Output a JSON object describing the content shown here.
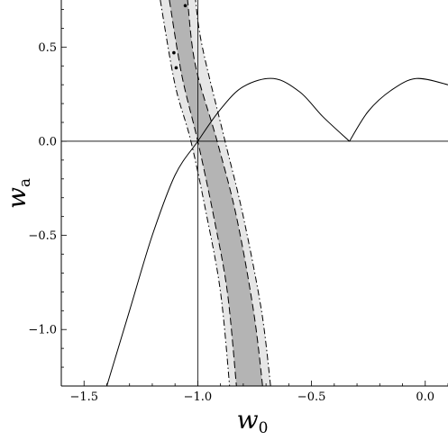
{
  "chart_data": {
    "type": "contour",
    "xlabel": "w",
    "xlabel_subscript": "0",
    "ylabel": "w",
    "ylabel_subscript": "a",
    "xlim": [
      -1.6,
      0.1
    ],
    "ylim": [
      -1.3,
      0.75
    ],
    "x_ticks": [
      -1.5,
      -1.0,
      -0.5,
      0.0
    ],
    "x_tick_labels": [
      "−1.5",
      "−1.0",
      "−0.5",
      "0.0"
    ],
    "y_ticks": [
      -1.0,
      -0.5,
      0.0,
      0.5
    ],
    "y_tick_labels": [
      "−1.0",
      "−0.5",
      "0.0",
      "0.5"
    ],
    "reference_lines": {
      "x": -1.0,
      "y": 0.0
    },
    "colors": {
      "outer_region": "#e6e6e6",
      "inner_region": "#b4b4b4",
      "lines": "#000000"
    },
    "regions": [
      {
        "level": "outer",
        "line_style": "dash-dot",
        "left_edge": [
          [
            -1.165,
            0.75
          ],
          [
            -1.1,
            0.3
          ],
          [
            -1.03,
            0.0
          ],
          [
            -0.96,
            -0.4
          ],
          [
            -0.9,
            -0.8
          ],
          [
            -0.86,
            -1.3
          ]
        ],
        "right_edge": [
          [
            -0.68,
            -1.3
          ],
          [
            -0.72,
            -0.9
          ],
          [
            -0.8,
            -0.4
          ],
          [
            -0.88,
            0.0
          ],
          [
            -0.98,
            0.5
          ],
          [
            -1.01,
            0.75
          ]
        ]
      },
      {
        "level": "inner",
        "line_style": "dashed",
        "left_edge": [
          [
            -1.125,
            0.75
          ],
          [
            -1.07,
            0.35
          ],
          [
            -1.0,
            0.0
          ],
          [
            -0.93,
            -0.4
          ],
          [
            -0.87,
            -0.8
          ],
          [
            -0.83,
            -1.3
          ]
        ],
        "right_edge": [
          [
            -0.715,
            -1.3
          ],
          [
            -0.755,
            -0.9
          ],
          [
            -0.83,
            -0.4
          ],
          [
            -0.915,
            0.0
          ],
          [
            -1.01,
            0.4
          ],
          [
            -1.045,
            0.75
          ]
        ]
      }
    ],
    "series": [
      {
        "style": "solid",
        "points": [
          [
            -1.4,
            -1.3
          ],
          [
            -1.3,
            -0.9
          ],
          [
            -1.2,
            -0.5
          ],
          [
            -1.1,
            -0.18
          ],
          [
            -1.0,
            0.0
          ],
          [
            -0.9,
            0.17
          ],
          [
            -0.8,
            0.29
          ],
          [
            -0.667,
            0.333
          ],
          [
            -0.55,
            0.26
          ],
          [
            -0.45,
            0.13
          ],
          [
            -0.333,
            0.0
          ],
          [
            -0.25,
            0.16
          ],
          [
            -0.15,
            0.27
          ],
          [
            -0.04,
            0.333
          ],
          [
            0.1,
            0.3
          ]
        ]
      }
    ],
    "points": [
      [
        -1.055,
        0.72
      ],
      [
        -1.105,
        0.47
      ],
      [
        -1.095,
        0.39
      ]
    ]
  }
}
